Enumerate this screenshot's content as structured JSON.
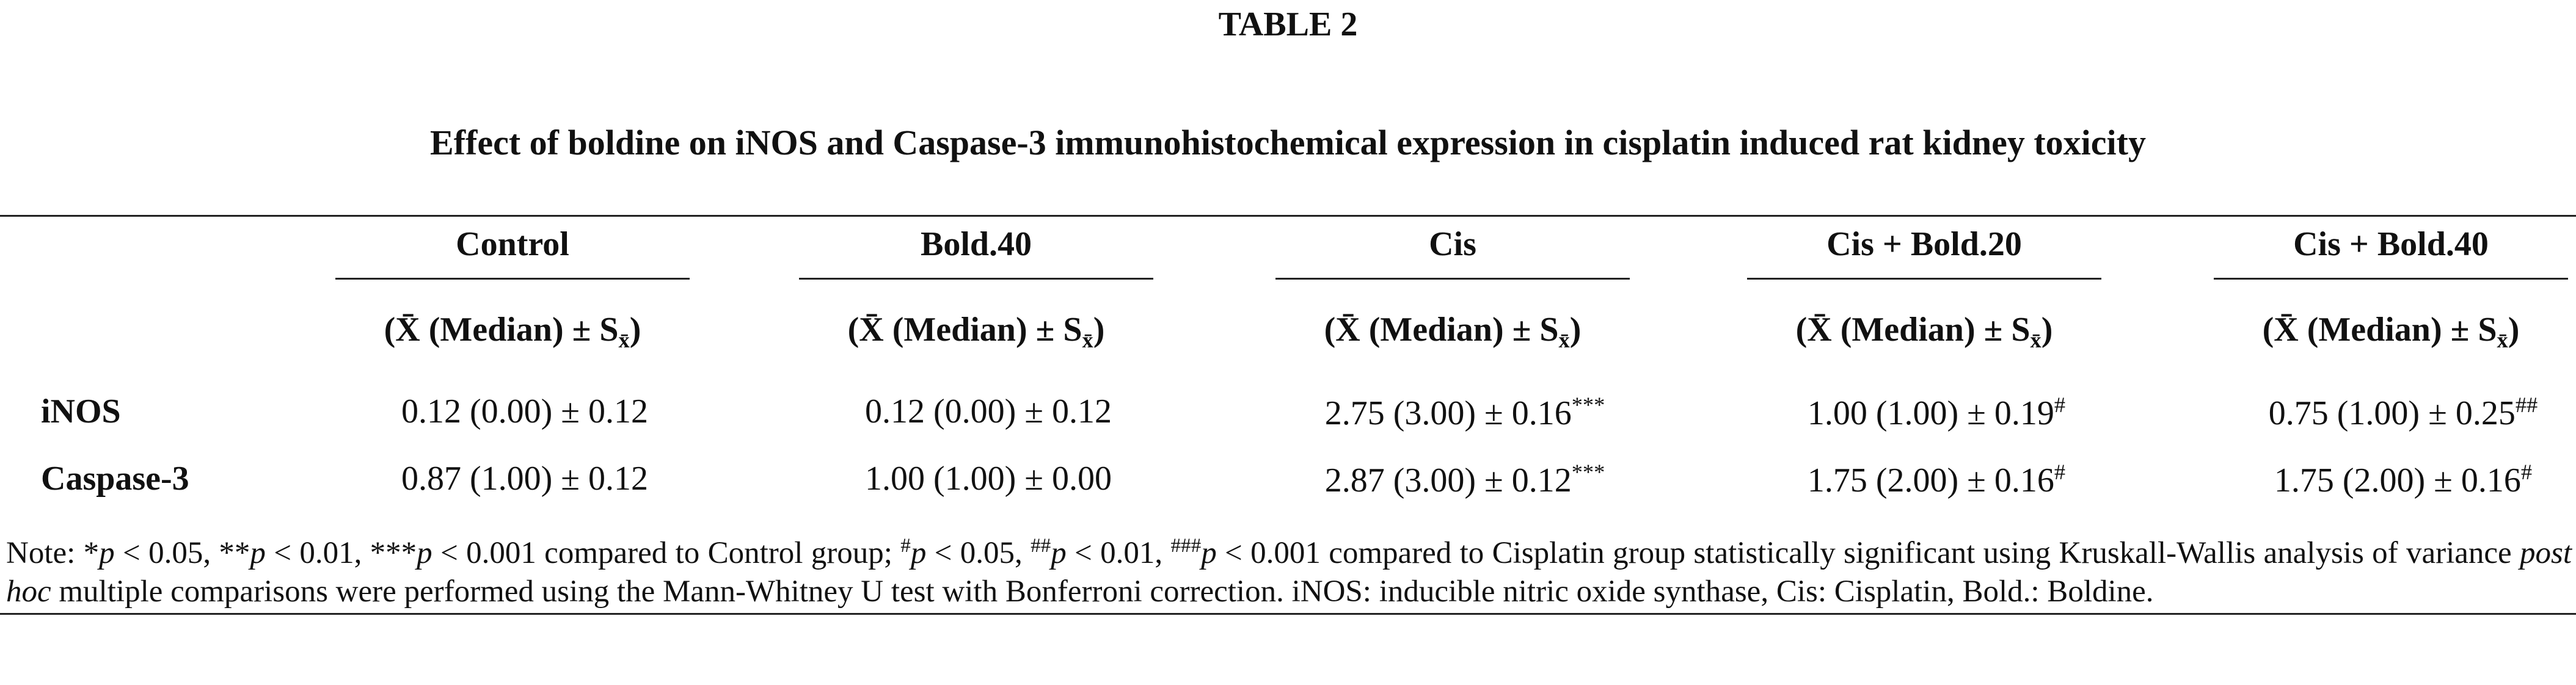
{
  "title": "TABLE 2",
  "subtitle": "Effect of boldine on iNOS and Caspase-3 immunohistochemical expression in cisplatin induced rat kidney toxicity",
  "table": {
    "columns": [
      "Control",
      "Bold.40",
      "Cis",
      "Cis + Bold.20",
      "Cis + Bold.40"
    ],
    "subheaders": [
      [
        {
          "text": "(X̄ (Median) ± S"
        },
        {
          "text": "x̄",
          "style": "sub"
        },
        {
          "text": ")"
        }
      ],
      [
        {
          "text": "(X̄ (Median) ± S"
        },
        {
          "text": "x̄",
          "style": "sub"
        },
        {
          "text": ")"
        }
      ],
      [
        {
          "text": "(X̄ (Median) ± S"
        },
        {
          "text": "x̄",
          "style": "sub"
        },
        {
          "text": ")"
        }
      ],
      [
        {
          "text": "(X̄ (Median) ± S"
        },
        {
          "text": "x̄",
          "style": "sub"
        },
        {
          "text": ")"
        }
      ],
      [
        {
          "text": "(X̄ (Median) ± S"
        },
        {
          "text": "x̄",
          "style": "sub"
        },
        {
          "text": ")"
        }
      ]
    ],
    "rows": [
      {
        "label": "iNOS",
        "cells": [
          {
            "text": "0.12 (0.00) ± 0.12"
          },
          {
            "text": "0.12 (0.00) ± 0.12"
          },
          {
            "text": "2.75 (3.00) ± 0.16",
            "sup": "***"
          },
          {
            "text": "1.00 (1.00) ± 0.19",
            "sup": "#"
          },
          {
            "text": "0.75 (1.00) ± 0.25",
            "sup": "##"
          }
        ]
      },
      {
        "label": "Caspase-3",
        "cells": [
          {
            "text": "0.87 (1.00) ± 0.12"
          },
          {
            "text": "1.00 (1.00) ± 0.00"
          },
          {
            "text": "2.87 (3.00) ± 0.12",
            "sup": "***"
          },
          {
            "text": "1.75 (2.00) ± 0.16",
            "sup": "#"
          },
          {
            "text": "1.75 (2.00) ± 0.16",
            "sup": "#"
          }
        ]
      }
    ]
  },
  "note": [
    {
      "text": "Note: *"
    },
    {
      "text": "p",
      "style": "italic"
    },
    {
      "text": " < 0.05, **"
    },
    {
      "text": "p",
      "style": "italic"
    },
    {
      "text": " < 0.01, ***"
    },
    {
      "text": "p",
      "style": "italic"
    },
    {
      "text": " < 0.001 compared to Control group; "
    },
    {
      "text": "#",
      "style": "sup"
    },
    {
      "text": "p",
      "style": "italic"
    },
    {
      "text": " < 0.05, "
    },
    {
      "text": "##",
      "style": "sup"
    },
    {
      "text": "p",
      "style": "italic"
    },
    {
      "text": " < 0.01, "
    },
    {
      "text": "###",
      "style": "sup"
    },
    {
      "text": "p",
      "style": "italic"
    },
    {
      "text": " < 0.001 compared to Cisplatin group statistically significant using Kruskall-Wallis analysis of variance "
    },
    {
      "text": "post hoc",
      "style": "italic"
    },
    {
      "text": " multiple comparisons were performed using the Mann-Whitney U test with Bonferroni correction. iNOS: inducible nitric oxide synthase, Cis: Cisplatin, Bold.: Boldine."
    }
  ]
}
